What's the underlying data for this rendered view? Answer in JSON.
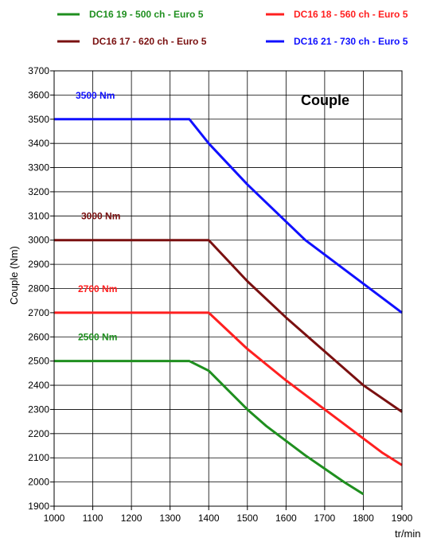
{
  "chart_data": {
    "type": "line",
    "title": "Couple",
    "xlabel": "tr/min",
    "ylabel": "Couple (Nm)",
    "xlim": [
      1000,
      1900
    ],
    "ylim": [
      1900,
      3700
    ],
    "x_ticks": [
      1000,
      1100,
      1200,
      1300,
      1400,
      1500,
      1600,
      1700,
      1800,
      1900
    ],
    "y_ticks": [
      1900,
      2000,
      2100,
      2200,
      2300,
      2400,
      2500,
      2600,
      2700,
      2800,
      2900,
      3000,
      3100,
      3200,
      3300,
      3400,
      3500,
      3600,
      3700
    ],
    "grid": true,
    "legend_position": "top",
    "series": [
      {
        "name": "DC16 19 - 500 ch - Euro 5",
        "color": "#1f8f1f",
        "x": [
          1000,
          1350,
          1400,
          1450,
          1500,
          1550,
          1600,
          1650,
          1700,
          1750,
          1800
        ],
        "y": [
          2500,
          2500,
          2460,
          2380,
          2300,
          2230,
          2170,
          2110,
          2055,
          2000,
          1950
        ],
        "annotation": "2500 Nm"
      },
      {
        "name": "DC16 18 - 560 ch - Euro 5",
        "color": "#ff2020",
        "x": [
          1000,
          1400,
          1500,
          1600,
          1700,
          1800,
          1850,
          1900
        ],
        "y": [
          2700,
          2700,
          2550,
          2420,
          2300,
          2180,
          2120,
          2070
        ],
        "annotation": "2700 Nm"
      },
      {
        "name": "DC16 17 - 620 ch - Euro 5",
        "color": "#7a1010",
        "x": [
          1000,
          1400,
          1500,
          1600,
          1700,
          1800,
          1900
        ],
        "y": [
          3000,
          3000,
          2830,
          2680,
          2540,
          2400,
          2290
        ],
        "annotation": "3000 Nm"
      },
      {
        "name": "DC16 21 - 730 ch - Euro 5",
        "color": "#1010ff",
        "x": [
          1000,
          1350,
          1400,
          1500,
          1650,
          1800,
          1900
        ],
        "y": [
          3500,
          3500,
          3400,
          3230,
          3000,
          2820,
          2700
        ],
        "annotation": "3500 Nm"
      }
    ]
  }
}
